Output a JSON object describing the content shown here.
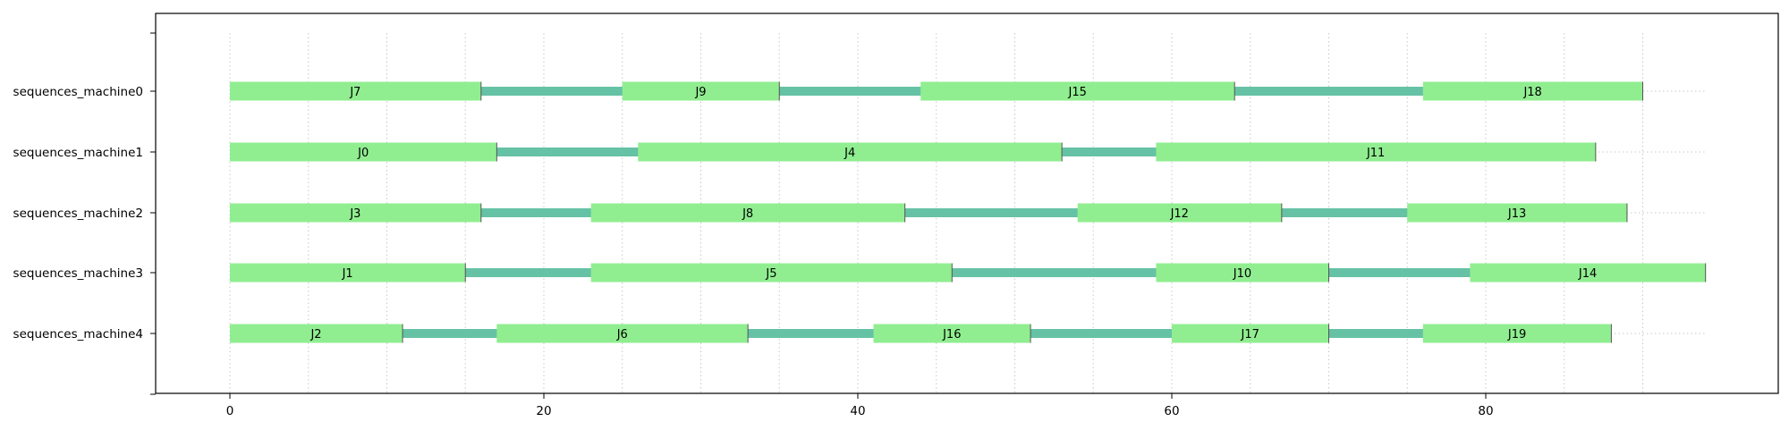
{
  "chart_data": {
    "type": "gantt",
    "xlim": [
      -4.7,
      99
    ],
    "xticks": [
      0,
      20,
      40,
      60,
      80
    ],
    "gridlines_x": [
      0,
      5,
      10,
      15,
      20,
      25,
      30,
      35,
      40,
      45,
      50,
      55,
      60,
      65,
      70,
      75,
      80,
      85,
      90
    ],
    "grid": "dotted vertical",
    "colors": {
      "task": "#90ee90",
      "gap": "#66c2a5",
      "grid": "#c8c8c8"
    },
    "rows": [
      {
        "label": "sequences_machine0",
        "end": 90,
        "tasks": [
          {
            "name": "J7",
            "start": 0,
            "end": 16
          },
          {
            "name": "J9",
            "start": 25,
            "end": 35
          },
          {
            "name": "J15",
            "start": 44,
            "end": 64
          },
          {
            "name": "J18",
            "start": 76,
            "end": 90
          }
        ]
      },
      {
        "label": "sequences_machine1",
        "end": 87,
        "tasks": [
          {
            "name": "J0",
            "start": 0,
            "end": 17
          },
          {
            "name": "J4",
            "start": 26,
            "end": 53
          },
          {
            "name": "J11",
            "start": 59,
            "end": 87
          }
        ]
      },
      {
        "label": "sequences_machine2",
        "end": 89,
        "tasks": [
          {
            "name": "J3",
            "start": 0,
            "end": 16
          },
          {
            "name": "J8",
            "start": 23,
            "end": 43
          },
          {
            "name": "J12",
            "start": 54,
            "end": 67
          },
          {
            "name": "J13",
            "start": 75,
            "end": 89
          }
        ]
      },
      {
        "label": "sequences_machine3",
        "end": 94,
        "tasks": [
          {
            "name": "J1",
            "start": 0,
            "end": 15
          },
          {
            "name": "J5",
            "start": 23,
            "end": 46
          },
          {
            "name": "J10",
            "start": 59,
            "end": 70
          },
          {
            "name": "J14",
            "start": 79,
            "end": 94
          }
        ]
      },
      {
        "label": "sequences_machine4",
        "end": 88,
        "tasks": [
          {
            "name": "J2",
            "start": 0,
            "end": 11
          },
          {
            "name": "J6",
            "start": 17,
            "end": 33
          },
          {
            "name": "J16",
            "start": 41,
            "end": 51
          },
          {
            "name": "J17",
            "start": 60,
            "end": 70
          },
          {
            "name": "J19",
            "start": 76,
            "end": 88
          }
        ]
      }
    ]
  }
}
